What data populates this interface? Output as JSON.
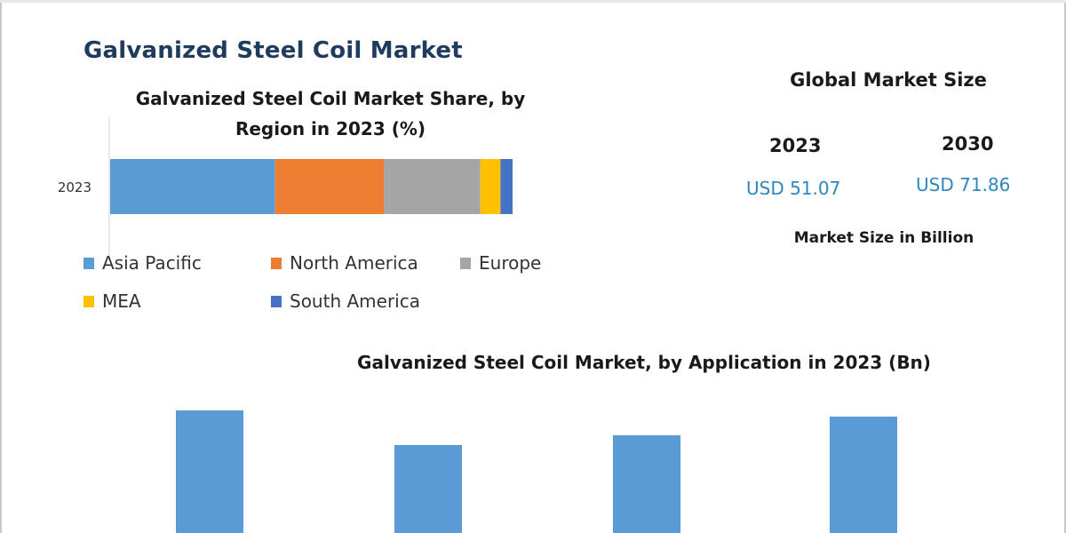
{
  "page": {
    "title": "Galvanized Steel Coil Market"
  },
  "summary": {
    "title": "Global Market Size",
    "year_start": "2023",
    "year_end": "2030",
    "value_start": "USD 51.07",
    "value_end": "USD 71.86",
    "unit": "Market Size in Billion"
  },
  "chart_data": [
    {
      "type": "bar",
      "orientation": "horizontal",
      "stacked": true,
      "title": "Galvanized Steel Coil Market Share, by Region in 2023 (%)",
      "categories": [
        "2023"
      ],
      "xlim": [
        0,
        100
      ],
      "legend_position": "bottom",
      "series": [
        {
          "name": "Asia Pacific",
          "color": "#5b9bd5",
          "values": [
            41
          ]
        },
        {
          "name": "North America",
          "color": "#ed7d31",
          "values": [
            27
          ]
        },
        {
          "name": "Europe",
          "color": "#a5a5a5",
          "values": [
            24
          ]
        },
        {
          "name": "MEA",
          "color": "#ffc000",
          "values": [
            5
          ]
        },
        {
          "name": "South America",
          "color": "#4472c4",
          "values": [
            3
          ]
        }
      ]
    },
    {
      "type": "bar",
      "title": "Galvanized Steel Coil Market, by Application in 2023 (Bn)",
      "categories": [
        "",
        "",
        "",
        ""
      ],
      "values": [
        17.7,
        12.7,
        14.1,
        16.8
      ],
      "ylim": [
        0,
        20
      ],
      "color": "#5b9bd5"
    }
  ]
}
